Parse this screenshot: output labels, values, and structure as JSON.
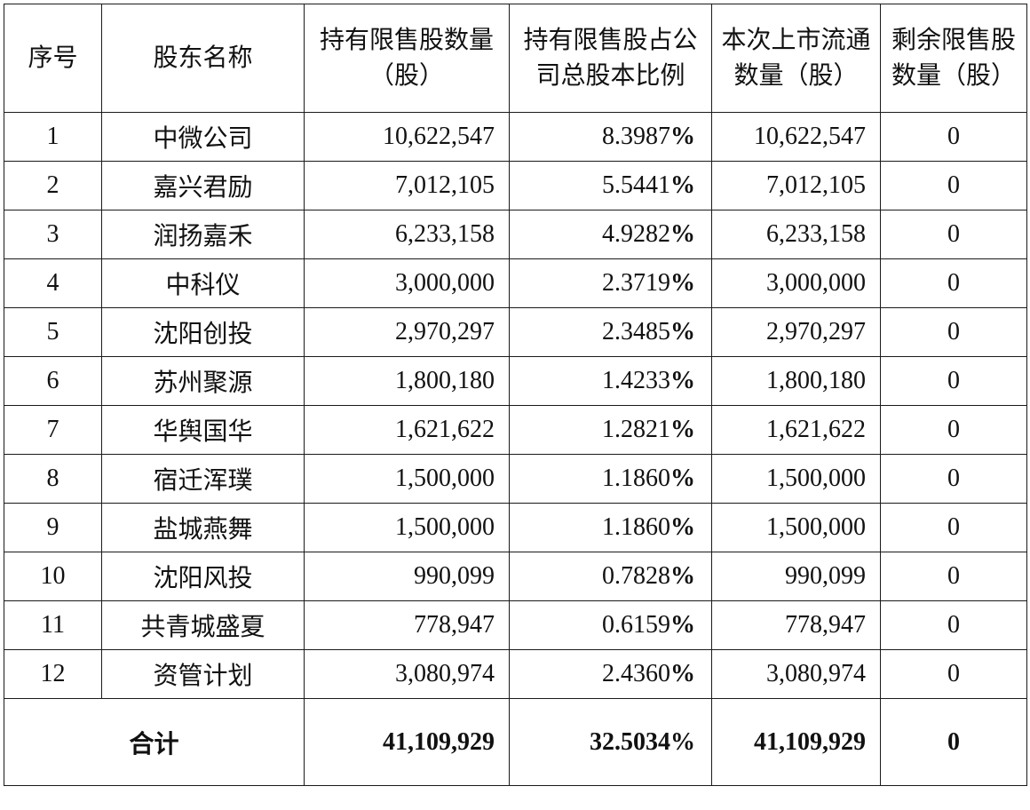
{
  "table": {
    "headers": {
      "no": "序号",
      "name": "股东名称",
      "restricted_shares": "持有限售股数量（股）",
      "ratio": "持有限售股占公司总股本比例",
      "listed_shares": "本次上市流通数量（股）",
      "remaining": "剩余限售股数量（股）"
    },
    "rows": [
      {
        "no": "1",
        "name": "中微公司",
        "restricted_shares": "10,622,547",
        "ratio": "8.3987",
        "pct": "%",
        "listed_shares": "10,622,547",
        "remaining": "0"
      },
      {
        "no": "2",
        "name": "嘉兴君励",
        "restricted_shares": "7,012,105",
        "ratio": "5.5441",
        "pct": "%",
        "listed_shares": "7,012,105",
        "remaining": "0"
      },
      {
        "no": "3",
        "name": "润扬嘉禾",
        "restricted_shares": "6,233,158",
        "ratio": "4.9282",
        "pct": "%",
        "listed_shares": "6,233,158",
        "remaining": "0"
      },
      {
        "no": "4",
        "name": "中科仪",
        "restricted_shares": "3,000,000",
        "ratio": "2.3719",
        "pct": "%",
        "listed_shares": "3,000,000",
        "remaining": "0"
      },
      {
        "no": "5",
        "name": "沈阳创投",
        "restricted_shares": "2,970,297",
        "ratio": "2.3485",
        "pct": "%",
        "listed_shares": "2,970,297",
        "remaining": "0"
      },
      {
        "no": "6",
        "name": "苏州聚源",
        "restricted_shares": "1,800,180",
        "ratio": "1.4233",
        "pct": "%",
        "listed_shares": "1,800,180",
        "remaining": "0"
      },
      {
        "no": "7",
        "name": "华舆国华",
        "restricted_shares": "1,621,622",
        "ratio": "1.2821",
        "pct": "%",
        "listed_shares": "1,621,622",
        "remaining": "0"
      },
      {
        "no": "8",
        "name": "宿迁浑璞",
        "restricted_shares": "1,500,000",
        "ratio": "1.1860",
        "pct": "%",
        "listed_shares": "1,500,000",
        "remaining": "0"
      },
      {
        "no": "9",
        "name": "盐城燕舞",
        "restricted_shares": "1,500,000",
        "ratio": "1.1860",
        "pct": "%",
        "listed_shares": "1,500,000",
        "remaining": "0"
      },
      {
        "no": "10",
        "name": "沈阳风投",
        "restricted_shares": "990,099",
        "ratio": "0.7828",
        "pct": "%",
        "listed_shares": "990,099",
        "remaining": "0"
      },
      {
        "no": "11",
        "name": "共青城盛夏",
        "restricted_shares": "778,947",
        "ratio": "0.6159",
        "pct": "%",
        "listed_shares": "778,947",
        "remaining": "0"
      },
      {
        "no": "12",
        "name": "资管计划",
        "restricted_shares": "3,080,974",
        "ratio": "2.4360",
        "pct": "%",
        "listed_shares": "3,080,974",
        "remaining": "0"
      }
    ],
    "total": {
      "label": "合计",
      "restricted_shares": "41,109,929",
      "ratio": "32.5034%",
      "listed_shares": "41,109,929",
      "remaining": "0"
    }
  }
}
